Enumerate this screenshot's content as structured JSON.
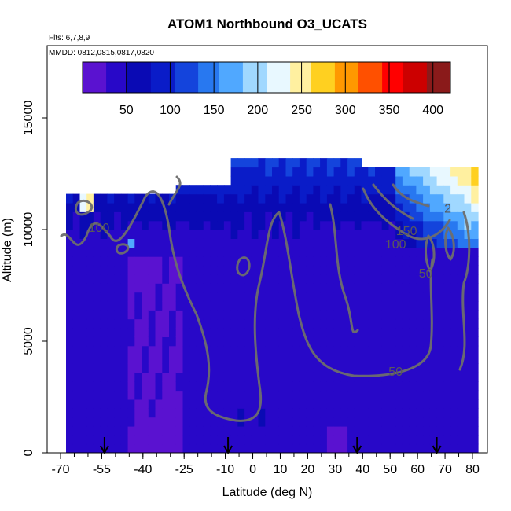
{
  "chart_data": {
    "type": "heatmap",
    "title": "ATOM1 Northbound O3_UCATS",
    "subtitle_flights": "Flts: 6,7,8,9",
    "subtitle_dates": "MMDD: 0812,0815,0817,0820",
    "xlabel": "Latitude (deg N)",
    "ylabel": "Altitude (m)",
    "xlim": [
      -70,
      85
    ],
    "ylim": [
      0,
      17500
    ],
    "x_ticks": [
      -70,
      -55,
      -40,
      -25,
      -10,
      0,
      10,
      20,
      30,
      40,
      50,
      60,
      70,
      80
    ],
    "x_tick_labels": [
      "-70",
      "-55",
      "-40",
      "-25",
      "-10",
      "0",
      "10",
      "20",
      "30",
      "40",
      "50",
      "60",
      "70",
      "80"
    ],
    "x_minor_step": 5,
    "y_ticks": [
      0,
      5000,
      10000,
      15000
    ],
    "y_tick_labels": [
      "0",
      "5000",
      "10000",
      "15000"
    ],
    "colorbar": {
      "range": [
        0,
        420
      ],
      "ticks": [
        50,
        100,
        150,
        200,
        250,
        300,
        350,
        400
      ],
      "tick_labels": [
        "50",
        "100",
        "150",
        "200",
        "250",
        "300",
        "350",
        "400"
      ],
      "colors": [
        "#5a12d0",
        "#2808c8",
        "#0a0ab4",
        "#0a1cc8",
        "#1444dc",
        "#2878f0",
        "#50a8ff",
        "#a0d8ff",
        "#e8f8ff",
        "#fff0a0",
        "#ffd020",
        "#ff9800",
        "#ff5000",
        "#ff0000",
        "#cc0000",
        "#8a1a1a"
      ]
    },
    "contour_levels": [
      50,
      100,
      150
    ],
    "contour_labels": [
      {
        "text": "100",
        "lat": -56,
        "alt": 10050
      },
      {
        "text": "150",
        "lat": 56,
        "alt": 9900
      },
      {
        "text": "100",
        "lat": 52,
        "alt": 9300
      },
      {
        "text": "50",
        "lat": 63,
        "alt": 8000
      },
      {
        "text": "50",
        "lat": 52,
        "alt": 3600
      },
      {
        "text": "2",
        "lat": 71,
        "alt": 10900
      }
    ],
    "flight_markers_lat": [
      -54,
      -9,
      38,
      67
    ],
    "data_extent": {
      "lat_range": [
        -68,
        82
      ],
      "alt_top_south": 11500,
      "alt_top_mid": 13000,
      "alt_top_north": 12500
    }
  }
}
